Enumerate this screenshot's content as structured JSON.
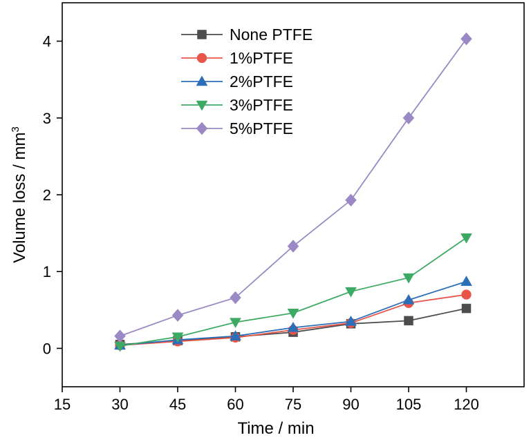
{
  "chart_data": {
    "type": "line",
    "title": "",
    "xlabel": "Time / min",
    "ylabel": "Volume loss / mm",
    "ylabel_superscript": "3",
    "xlim": [
      15,
      135
    ],
    "ylim": [
      -0.5,
      4.5
    ],
    "xticks": [
      15,
      30,
      45,
      60,
      75,
      90,
      105,
      120
    ],
    "yticks": [
      0,
      1,
      2,
      3,
      4
    ],
    "grid": false,
    "legend_position": "top-center",
    "x": [
      30,
      45,
      60,
      75,
      90,
      105,
      120
    ],
    "series": [
      {
        "name": "None PTFE",
        "color": "#4d4d4d",
        "marker": "square",
        "values": [
          0.05,
          0.1,
          0.15,
          0.21,
          0.32,
          0.36,
          0.52
        ]
      },
      {
        "name": "1%PTFE",
        "color": "#e8564a",
        "marker": "circle",
        "values": [
          0.04,
          0.09,
          0.14,
          0.24,
          0.33,
          0.59,
          0.7
        ]
      },
      {
        "name": "2%PTFE",
        "color": "#2c6fb8",
        "marker": "triangle-up",
        "values": [
          0.04,
          0.11,
          0.16,
          0.27,
          0.35,
          0.63,
          0.87
        ]
      },
      {
        "name": "3%PTFE",
        "color": "#3daa64",
        "marker": "triangle-down",
        "values": [
          0.03,
          0.15,
          0.34,
          0.46,
          0.74,
          0.92,
          1.44
        ]
      },
      {
        "name": "5%PTFE",
        "color": "#9a89c4",
        "marker": "diamond",
        "values": [
          0.16,
          0.43,
          0.66,
          1.33,
          1.93,
          3.0,
          4.03
        ]
      }
    ]
  }
}
